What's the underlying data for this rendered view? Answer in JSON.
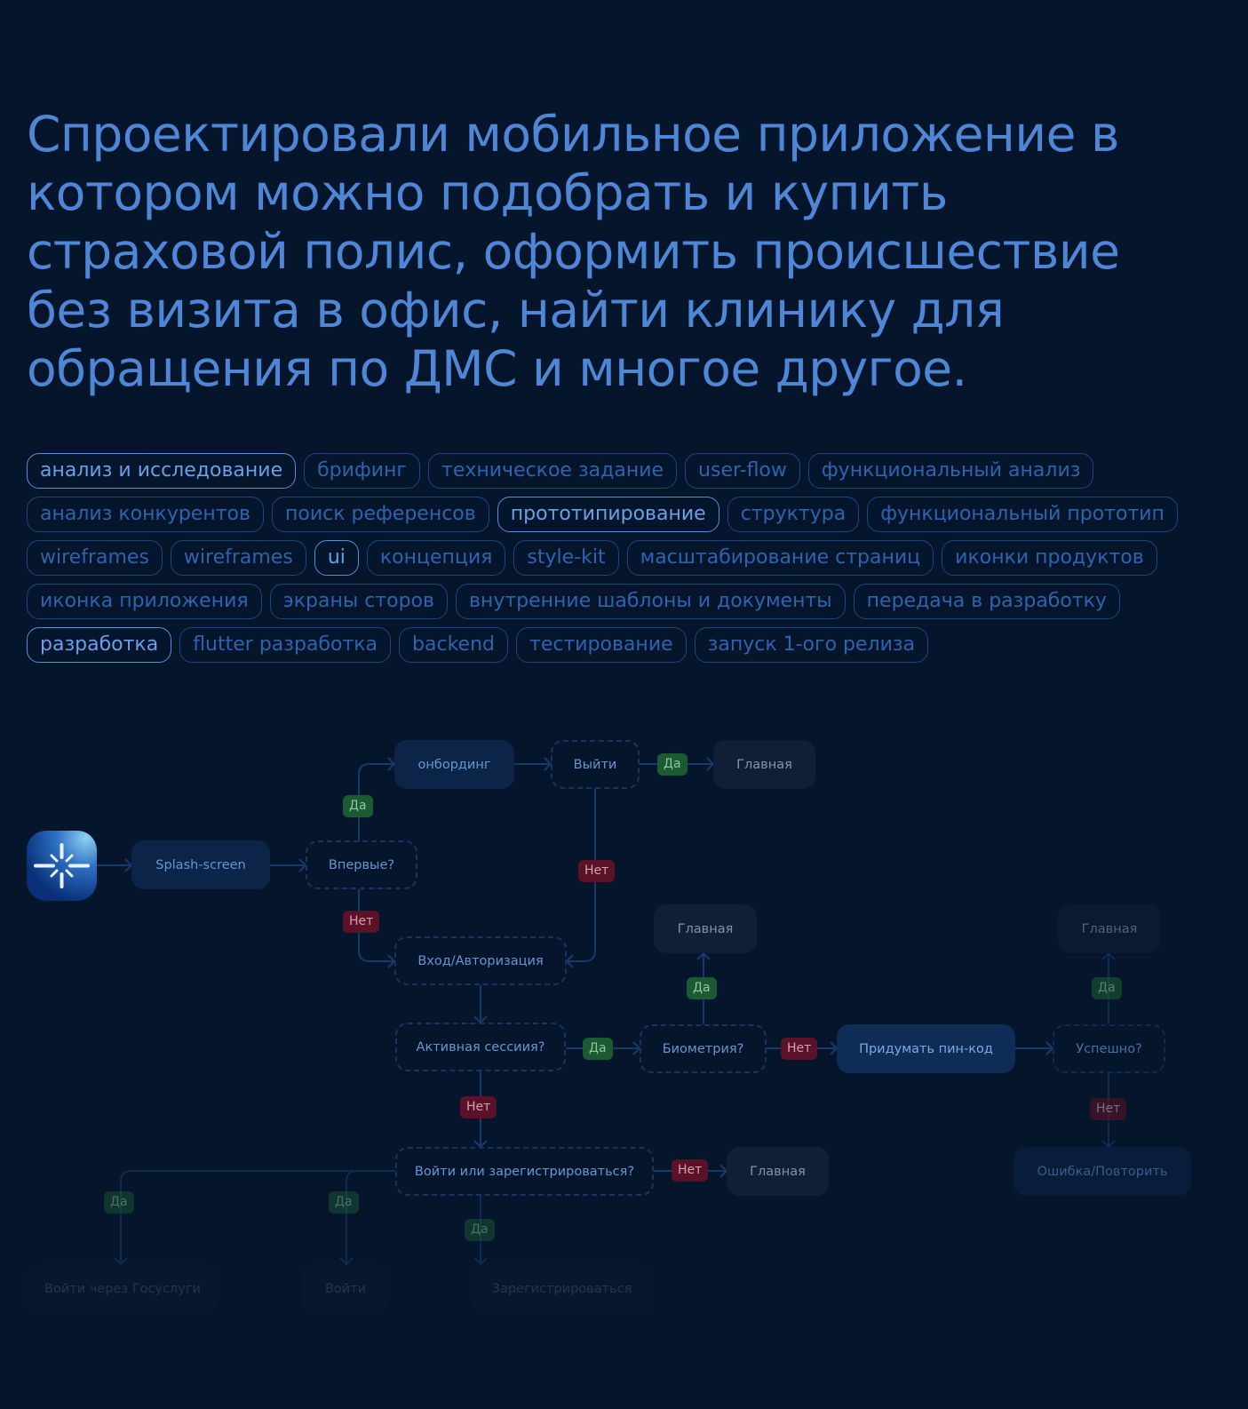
{
  "headline": "Спроектировали мобильное приложение в котором можно подобрать и купить страховой полис, оформить происшествие без визита в офис, найти клинику для обращения по ДМС и многое другое.",
  "tag_rows": [
    [
      {
        "label": "анализ и исследование",
        "active": true
      },
      {
        "label": "брифинг",
        "active": false
      },
      {
        "label": "техническое задание",
        "active": false
      },
      {
        "label": "user-flow",
        "active": false
      },
      {
        "label": "функциональный анализ",
        "active": false
      }
    ],
    [
      {
        "label": "анализ конкурентов",
        "active": false
      },
      {
        "label": "поиск референсов",
        "active": false
      },
      {
        "label": "прототипирование",
        "active": true
      },
      {
        "label": "структура",
        "active": false
      },
      {
        "label": "функциональный прототип",
        "active": false
      }
    ],
    [
      {
        "label": "wireframes",
        "active": false
      },
      {
        "label": "wireframes",
        "active": false
      },
      {
        "label": "ui",
        "active": true
      },
      {
        "label": "концепция",
        "active": false
      },
      {
        "label": "style-kit",
        "active": false
      },
      {
        "label": "масштабирование страниц",
        "active": false
      },
      {
        "label": "иконки продуктов",
        "active": false
      }
    ],
    [
      {
        "label": "иконка приложения",
        "active": false
      },
      {
        "label": "экраны сторов",
        "active": false
      },
      {
        "label": "внутренние шаблоны и документы",
        "active": false
      },
      {
        "label": "передача в разработку",
        "active": false
      }
    ],
    [
      {
        "label": "разработка",
        "active": true
      },
      {
        "label": "flutter разработка",
        "active": false
      },
      {
        "label": "backend",
        "active": false
      },
      {
        "label": "тестирование",
        "active": false
      },
      {
        "label": "запуск 1-ого релиза",
        "active": false
      }
    ]
  ],
  "flow": {
    "nodes": {
      "splash": "Splash-screen",
      "first_time": "Впервые?",
      "onboarding": "онбординг",
      "exit": "Выйти",
      "main1": "Главная",
      "login": "Вход/Авторизация",
      "main2": "Главная",
      "main3": "Главная",
      "active_session": "Активная сессиия?",
      "biometry": "Биометрия?",
      "pin": "Придумать пин-код",
      "success": "Успешно?",
      "error": "Ошибка/Повторить",
      "login_or_register": "Войти или зарегистрироваться?",
      "main4": "Главная",
      "gosuslugi": "Войти через Госуслуги",
      "sign_in": "Войти",
      "register": "Зарегистрироваться"
    },
    "yes": "Да",
    "no": "Нет"
  },
  "colors": {
    "background": "#04152c",
    "accent": "#4f86d6",
    "yes": "#1c5a33",
    "no": "#5a1229"
  }
}
